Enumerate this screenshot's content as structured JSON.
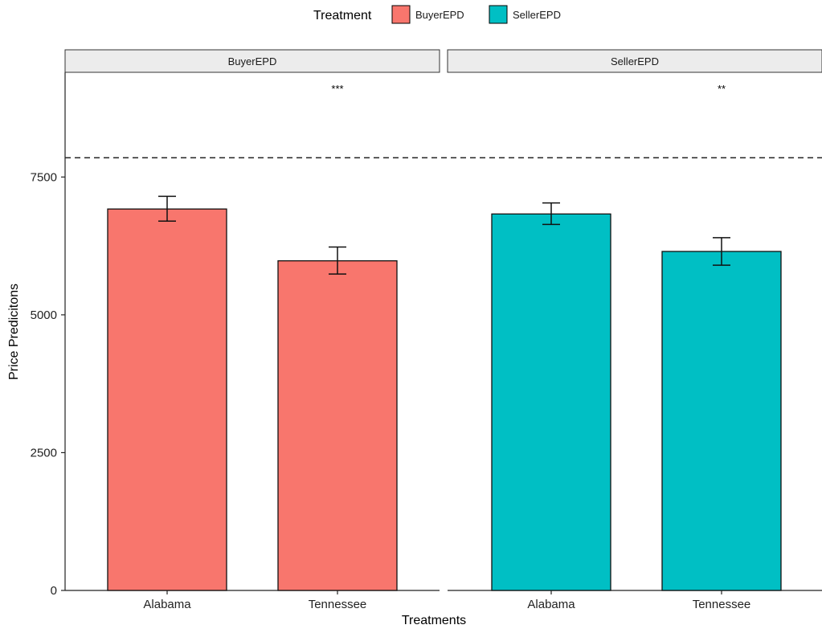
{
  "chart_data": {
    "type": "bar",
    "title": "",
    "xlabel": "Treatments",
    "ylabel": "Price Predicitons",
    "ylim": [
      0,
      9400
    ],
    "yticks": [
      0,
      2500,
      5000,
      7500
    ],
    "grid": false,
    "legend": {
      "title": "Treatment",
      "placement": "top",
      "entries": [
        {
          "name": "BuyerEPD",
          "color": "#F8766D"
        },
        {
          "name": "SellerEPD",
          "color": "#00BFC4"
        }
      ]
    },
    "reference_line": {
      "y": 7850,
      "style": "dashed"
    },
    "facets": [
      {
        "label": "BuyerEPD",
        "color": "#F8766D",
        "significance": "***",
        "categories": [
          "Alabama",
          "Tennessee"
        ],
        "values": [
          6920,
          5980
        ],
        "error_low": [
          6700,
          5740
        ],
        "error_high": [
          7150,
          6230
        ]
      },
      {
        "label": "SellerEPD",
        "color": "#00BFC4",
        "significance": "**",
        "categories": [
          "Alabama",
          "Tennessee"
        ],
        "values": [
          6830,
          6150
        ],
        "error_low": [
          6640,
          5900
        ],
        "error_high": [
          7030,
          6400
        ]
      }
    ]
  }
}
